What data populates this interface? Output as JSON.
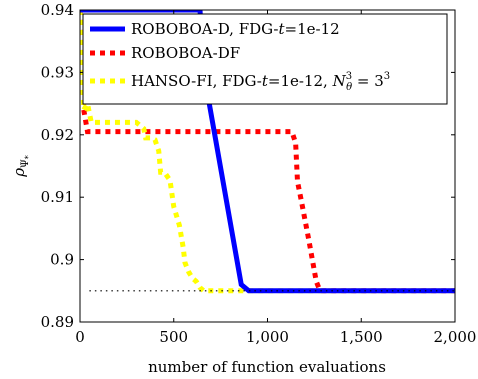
{
  "chart_data": {
    "type": "line",
    "xlabel": "number of function evaluations",
    "ylabel": "ρ_{Ψ*}",
    "xlim": [
      0,
      2000
    ],
    "ylim": [
      0.89,
      0.94
    ],
    "xticks": [
      0,
      500,
      1000,
      1500,
      2000
    ],
    "xtick_labels": [
      "0",
      "500",
      "1,000",
      "1,500",
      "2,000"
    ],
    "yticks": [
      0.89,
      0.9,
      0.91,
      0.92,
      0.93,
      0.94
    ],
    "ytick_labels": [
      "0.89",
      "0.9",
      "0.91",
      "0.92",
      "0.93",
      "0.94"
    ],
    "grid": false,
    "legend_position": "top",
    "reference_line": {
      "y": 0.895,
      "style": "dotted",
      "color": "#000000",
      "x_range": [
        50,
        2000
      ]
    },
    "series": [
      {
        "name": "ROBOBOA-D, FDG-t=1e-12",
        "legend_parts": [
          "ROBOBOA-D, FDG-",
          "t",
          "=1e-12"
        ],
        "color": "#0000ff",
        "style": "solid",
        "x": [
          0,
          10,
          20,
          640,
          650,
          660,
          860,
          900,
          2000
        ],
        "y": [
          0.94,
          0.94,
          0.94,
          0.94,
          0.935,
          0.93,
          0.896,
          0.895,
          0.895
        ]
      },
      {
        "name": "ROBOBOA-DF",
        "legend_parts": [
          "ROBOBOA-DF"
        ],
        "color": "#ff0000",
        "style": "dotted",
        "x": [
          0,
          10,
          20,
          40,
          60,
          1100,
          1130,
          1150,
          1160,
          1180,
          1220,
          1260,
          1280,
          1300,
          2000
        ],
        "y": [
          0.94,
          0.936,
          0.924,
          0.9205,
          0.9205,
          0.9205,
          0.9205,
          0.9187,
          0.9125,
          0.9095,
          0.9032,
          0.8965,
          0.895,
          0.895,
          0.895
        ]
      },
      {
        "name": "HANSO-FI, FDG-t=1e-12, N_θ^3 = 3^3",
        "legend_parts": [
          "HANSO-FI, FDG-",
          "t",
          "=1e-12, ",
          "N",
          "3",
          "θ",
          " = 3",
          "3"
        ],
        "color": "#ffff00",
        "style": "dotted",
        "x": [
          0,
          20,
          40,
          60,
          100,
          300,
          320,
          340,
          350,
          380,
          400,
          420,
          430,
          450,
          480,
          500,
          530,
          550,
          560,
          580,
          600,
          620,
          640,
          660,
          700,
          2000
        ],
        "y": [
          0.94,
          0.924,
          0.925,
          0.922,
          0.922,
          0.922,
          0.9215,
          0.921,
          0.9195,
          0.9195,
          0.9192,
          0.9174,
          0.914,
          0.914,
          0.9127,
          0.9085,
          0.9055,
          0.902,
          0.8995,
          0.898,
          0.897,
          0.8965,
          0.8955,
          0.895,
          0.895,
          0.895
        ]
      }
    ]
  }
}
